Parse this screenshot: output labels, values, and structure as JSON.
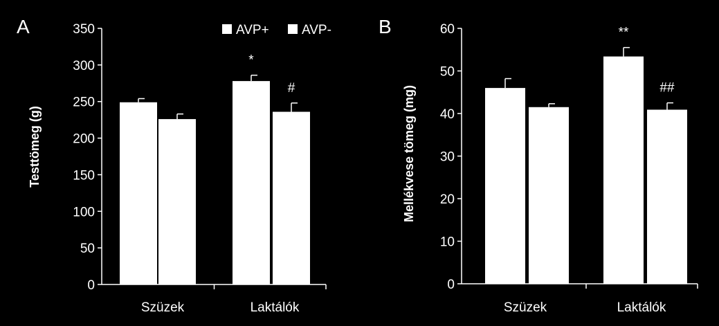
{
  "legend": [
    {
      "label": "AVP+",
      "color": "#ffffff"
    },
    {
      "label": "AVP-",
      "color": "#ffffff"
    }
  ],
  "chart_data": [
    {
      "type": "bar",
      "panel_label": "A",
      "title": "",
      "xlabel": "",
      "ylabel": "Testtömeg (g)",
      "ylim": [
        0,
        350
      ],
      "yticks": [
        "0",
        "50",
        "100",
        "150",
        "200",
        "250",
        "300",
        "350"
      ],
      "categories": [
        "Szüzek",
        "Laktálók"
      ],
      "series": [
        {
          "name": "AVP+",
          "values": [
            249,
            278
          ],
          "errors": [
            5,
            8
          ]
        },
        {
          "name": "AVP-",
          "values": [
            226,
            236
          ],
          "errors": [
            7,
            12
          ]
        }
      ],
      "annotations": [
        {
          "series": 0,
          "category": 1,
          "text": "*"
        },
        {
          "series": 1,
          "category": 1,
          "text": "#"
        }
      ],
      "legend_position": "top-right",
      "grid": false
    },
    {
      "type": "bar",
      "panel_label": "B",
      "title": "",
      "xlabel": "",
      "ylabel": "Mellékvese tömeg (mg)",
      "ylim": [
        0,
        60
      ],
      "yticks": [
        "0",
        "10",
        "20",
        "30",
        "40",
        "50",
        "60"
      ],
      "categories": [
        "Szüzek",
        "Laktálók"
      ],
      "series": [
        {
          "name": "AVP+",
          "values": [
            46,
            53.4
          ],
          "errors": [
            2.2,
            2.1
          ]
        },
        {
          "name": "AVP-",
          "values": [
            41.5,
            40.9
          ],
          "errors": [
            0.8,
            1.6
          ]
        }
      ],
      "annotations": [
        {
          "series": 0,
          "category": 1,
          "text": "**"
        },
        {
          "series": 1,
          "category": 1,
          "text": "##"
        }
      ],
      "grid": false
    }
  ]
}
